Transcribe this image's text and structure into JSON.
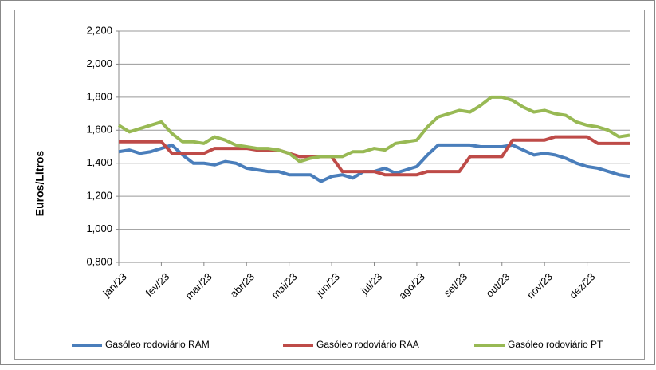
{
  "chart_data": {
    "type": "line",
    "y_label": "Euros/Litros",
    "categories": [
      "jan/23",
      null,
      null,
      null,
      "fev/23",
      null,
      null,
      null,
      "mar/23",
      null,
      null,
      null,
      "abr/23",
      null,
      null,
      null,
      "mai/23",
      null,
      null,
      null,
      "jun/23",
      null,
      null,
      null,
      "jul/23",
      null,
      null,
      null,
      "ago/23",
      null,
      null,
      null,
      "set/23",
      null,
      null,
      null,
      "out/23",
      null,
      null,
      null,
      "nov/23",
      null,
      null,
      null,
      "dez/23",
      null,
      null,
      null,
      null
    ],
    "series": [
      {
        "name": "Gasóleo rodoviário RAM",
        "color": "#4a7ebb",
        "values": [
          1.47,
          1.48,
          1.46,
          1.47,
          1.49,
          1.51,
          1.45,
          1.4,
          1.4,
          1.39,
          1.41,
          1.4,
          1.37,
          1.36,
          1.35,
          1.35,
          1.33,
          1.33,
          1.33,
          1.29,
          1.32,
          1.33,
          1.31,
          1.35,
          1.35,
          1.37,
          1.34,
          1.36,
          1.38,
          1.45,
          1.51,
          1.51,
          1.51,
          1.51,
          1.5,
          1.5,
          1.5,
          1.51,
          1.48,
          1.45,
          1.46,
          1.45,
          1.43,
          1.4,
          1.38,
          1.37,
          1.35,
          1.33,
          1.32
        ]
      },
      {
        "name": "Gasóleo rodoviário RAA",
        "color": "#be4b48",
        "values": [
          1.53,
          1.53,
          1.53,
          1.53,
          1.53,
          1.46,
          1.46,
          1.46,
          1.46,
          1.49,
          1.49,
          1.49,
          1.49,
          1.48,
          1.48,
          1.48,
          1.46,
          1.44,
          1.44,
          1.44,
          1.44,
          1.35,
          1.35,
          1.35,
          1.35,
          1.33,
          1.33,
          1.33,
          1.33,
          1.35,
          1.35,
          1.35,
          1.35,
          1.44,
          1.44,
          1.44,
          1.44,
          1.54,
          1.54,
          1.54,
          1.54,
          1.56,
          1.56,
          1.56,
          1.56,
          1.52,
          1.52,
          1.52,
          1.52
        ]
      },
      {
        "name": "Gasóleo rodoviário PT",
        "color": "#98b954",
        "values": [
          1.63,
          1.59,
          1.61,
          1.63,
          1.65,
          1.58,
          1.53,
          1.53,
          1.52,
          1.56,
          1.54,
          1.51,
          1.5,
          1.49,
          1.49,
          1.48,
          1.46,
          1.41,
          1.43,
          1.44,
          1.44,
          1.44,
          1.47,
          1.47,
          1.49,
          1.48,
          1.52,
          1.53,
          1.54,
          1.62,
          1.68,
          1.7,
          1.72,
          1.71,
          1.75,
          1.8,
          1.8,
          1.78,
          1.74,
          1.71,
          1.72,
          1.7,
          1.69,
          1.65,
          1.63,
          1.62,
          1.6,
          1.56,
          1.57
        ]
      }
    ],
    "ylim": [
      0.8,
      2.2
    ],
    "yticks": [
      {
        "value": 0.8,
        "label": "0,800"
      },
      {
        "value": 1.0,
        "label": "1,000"
      },
      {
        "value": 1.2,
        "label": "1,200"
      },
      {
        "value": 1.4,
        "label": "1,400"
      },
      {
        "value": 1.6,
        "label": "1,600"
      },
      {
        "value": 1.8,
        "label": "1,800"
      },
      {
        "value": 2.0,
        "label": "2,000"
      },
      {
        "value": 2.2,
        "label": "2,200"
      }
    ],
    "grid": true,
    "legend": "bottom"
  }
}
